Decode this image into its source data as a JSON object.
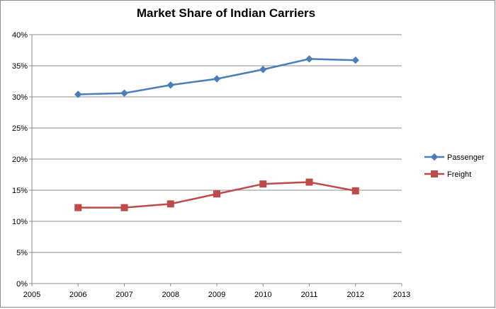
{
  "chart_data": {
    "type": "line",
    "title": "Market Share of Indian Carriers",
    "xlabel": "",
    "ylabel": "",
    "x": [
      2006,
      2007,
      2008,
      2009,
      2010,
      2011,
      2012
    ],
    "xlim": [
      2005,
      2013
    ],
    "x_ticks": [
      "2005",
      "2006",
      "2007",
      "2008",
      "2009",
      "2010",
      "2011",
      "2012",
      "2013"
    ],
    "ylim": [
      0,
      40
    ],
    "y_ticks": [
      "0%",
      "5%",
      "10%",
      "15%",
      "20%",
      "25%",
      "30%",
      "35%",
      "40%"
    ],
    "grid": true,
    "legend_position": "right",
    "series": [
      {
        "name": "Passenger",
        "color": "#4a7ebb",
        "marker": "diamond",
        "values": [
          30.4,
          30.6,
          31.9,
          32.9,
          34.4,
          36.1,
          35.9
        ]
      },
      {
        "name": "Freight",
        "color": "#be4b48",
        "marker": "square",
        "values": [
          12.2,
          12.2,
          12.8,
          14.4,
          16.0,
          16.3,
          14.9
        ]
      }
    ]
  }
}
